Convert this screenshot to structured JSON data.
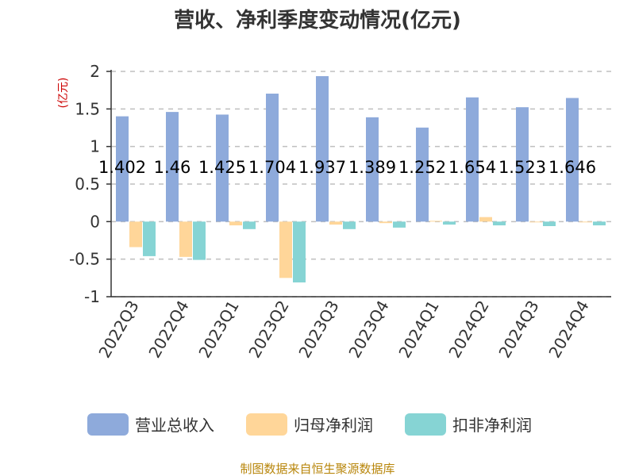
{
  "chart_data": {
    "type": "bar",
    "title": "营收、净利季度变动情况(亿元)",
    "ylabel": "(亿元)",
    "xlabel": "",
    "ylim": [
      -1,
      2
    ],
    "yticks": [
      -1,
      -0.5,
      0,
      0.5,
      1,
      1.5,
      2
    ],
    "ytick_labels": [
      "-1",
      "-0.5",
      "0",
      "0.5",
      "1",
      "1.5",
      "2"
    ],
    "grid": true,
    "legend_position": "bottom",
    "categories": [
      "2022Q3",
      "2022Q4",
      "2023Q1",
      "2023Q2",
      "2023Q3",
      "2023Q4",
      "2024Q1",
      "2024Q2",
      "2024Q3",
      "2024Q4"
    ],
    "series": [
      {
        "name": "营业总收入",
        "color": "#8eaadb",
        "values": [
          1.402,
          1.46,
          1.425,
          1.704,
          1.937,
          1.389,
          1.252,
          1.654,
          1.523,
          1.646
        ],
        "data_labels": [
          "1.402",
          "1.46",
          "1.425",
          "1.704",
          "1.937",
          "1.389",
          "1.252",
          "1.654",
          "1.523",
          "1.646"
        ]
      },
      {
        "name": "归母净利润",
        "color": "#ffd699",
        "values": [
          -0.34,
          -0.47,
          -0.05,
          -0.75,
          -0.04,
          -0.02,
          0.01,
          0.06,
          -0.01,
          -0.01
        ]
      },
      {
        "name": "扣非净利润",
        "color": "#86d4d4",
        "values": [
          -0.46,
          -0.51,
          -0.1,
          -0.81,
          -0.1,
          -0.08,
          -0.04,
          -0.05,
          -0.06,
          -0.05
        ]
      }
    ],
    "source": "制图数据来自恒生聚源数据库"
  }
}
